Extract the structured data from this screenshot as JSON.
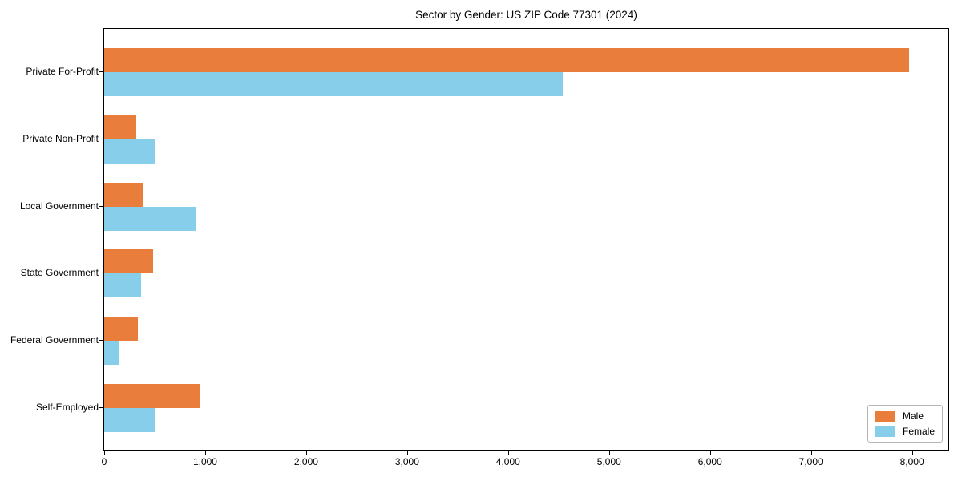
{
  "chart_data": {
    "type": "bar",
    "orientation": "horizontal",
    "title": "Sector by Gender: US ZIP Code 77301 (2024)",
    "categories": [
      "Private For-Profit",
      "Private Non-Profit",
      "Local Government",
      "State Government",
      "Federal Government",
      "Self-Employed"
    ],
    "series": [
      {
        "name": "Male",
        "color": "#e87d3c",
        "values": [
          7970,
          315,
          390,
          485,
          335,
          950
        ]
      },
      {
        "name": "Female",
        "color": "#87ceeb",
        "values": [
          4540,
          500,
          905,
          365,
          150,
          500
        ]
      }
    ],
    "xlabel": "",
    "ylabel": "",
    "xlim": [
      0,
      8360
    ],
    "xticks": {
      "values": [
        0,
        1000,
        2000,
        3000,
        4000,
        5000,
        6000,
        7000,
        8000
      ],
      "labels": [
        "0",
        "1,000",
        "2,000",
        "3,000",
        "4,000",
        "5,000",
        "6,000",
        "7,000",
        "8,000"
      ]
    },
    "grid": false,
    "legend": {
      "position": "lower right"
    },
    "colors": {
      "background": "#ffffff",
      "axis": "#000000",
      "male": "#e87d3c",
      "female": "#87ceeb"
    }
  }
}
